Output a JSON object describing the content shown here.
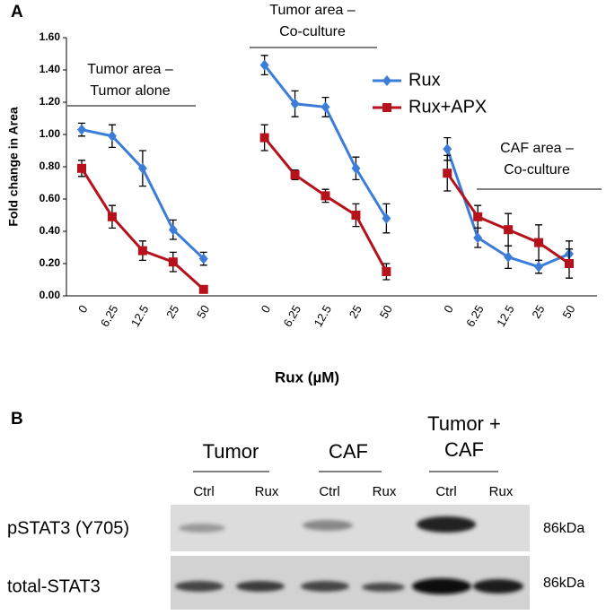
{
  "panel_a": "A",
  "panel_b": "B",
  "chart_data": {
    "type": "line",
    "y_label": "Fold change in Area",
    "x_label": "Rux (µM)",
    "categories": [
      "0",
      "6.25",
      "12.5",
      "25",
      "50",
      null,
      "0",
      "6.25",
      "12.5",
      "25",
      "50",
      null,
      "0",
      "6.25",
      "12.5",
      "25",
      "50"
    ],
    "series": [
      {
        "name": "Rux",
        "color": "#3b7dd8",
        "marker": "diamond",
        "values": [
          1.03,
          0.99,
          0.79,
          0.41,
          0.23,
          null,
          1.43,
          1.19,
          1.17,
          0.79,
          0.48,
          null,
          0.91,
          0.36,
          0.24,
          0.18,
          0.26
        ],
        "errors": [
          0.04,
          0.07,
          0.11,
          0.06,
          0.04,
          null,
          0.06,
          0.08,
          0.06,
          0.07,
          0.09,
          null,
          0.07,
          0.06,
          0.07,
          0.04,
          0.08
        ]
      },
      {
        "name": "Rux+APX",
        "color": "#b5121b",
        "marker": "square",
        "values": [
          0.79,
          0.49,
          0.28,
          0.21,
          0.04,
          null,
          0.98,
          0.75,
          0.62,
          0.5,
          0.15,
          null,
          0.76,
          0.49,
          0.41,
          0.33,
          0.2
        ],
        "errors": [
          0.05,
          0.07,
          0.06,
          0.06,
          0.02,
          null,
          0.08,
          0.03,
          0.04,
          0.07,
          0.05,
          null,
          0.11,
          0.07,
          0.1,
          0.11,
          0.09
        ]
      }
    ],
    "ylim": [
      0,
      1.6
    ],
    "yticks": [
      {
        "value": 0,
        "label": "0.00"
      },
      {
        "value": 0.2,
        "label": "0.20"
      },
      {
        "value": 0.4,
        "label": "0.40"
      },
      {
        "value": 0.6,
        "label": "0.60"
      },
      {
        "value": 0.8,
        "label": "0.80"
      },
      {
        "value": 1.0,
        "label": "1.00"
      },
      {
        "value": 1.2,
        "label": "1.20"
      },
      {
        "value": 1.4,
        "label": "1.40"
      },
      {
        "value": 1.6,
        "label": "1.60"
      }
    ],
    "legend": "upper right",
    "annotations": [
      {
        "lines": [
          "Tumor area –",
          "Tumor alone"
        ]
      },
      {
        "lines": [
          "Tumor area –",
          "Co-culture"
        ]
      },
      {
        "lines": [
          "CAF area –",
          "Co-culture"
        ]
      }
    ]
  },
  "blot": {
    "groups": [
      {
        "lines": [
          "Tumor"
        ]
      },
      {
        "lines": [
          "CAF"
        ]
      },
      {
        "lines": [
          "Tumor +",
          "CAF"
        ]
      }
    ],
    "lanes": [
      "Ctrl",
      "Rux",
      "Ctrl",
      "Rux",
      "Ctrl",
      "Rux"
    ],
    "rows": [
      {
        "label": "pSTAT3 (Y705)",
        "size": "86kDa"
      },
      {
        "label": "total-STAT3",
        "size": "86kDa"
      }
    ]
  }
}
